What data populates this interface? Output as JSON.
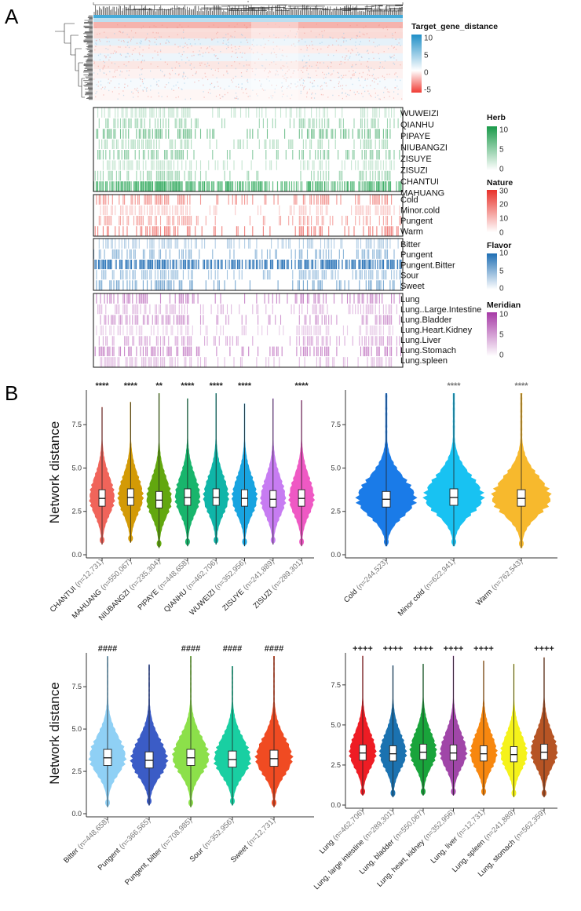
{
  "panel_labels": {
    "a": "A",
    "b": "B"
  },
  "heatmap": {
    "top_legend": {
      "title": "Target_gene_distance",
      "ticks": [
        "10",
        "5",
        "0",
        "-5"
      ],
      "colors": {
        "high": "#1f8fc7",
        "mid": "#ffffff",
        "low": "#f03c34"
      }
    },
    "blocks": [
      {
        "key": "herb",
        "legend_title": "Herb",
        "ticks": [
          "10",
          "5",
          "0"
        ],
        "color": "#1a9a4a",
        "rows": [
          "WUWEIZI",
          "QIANHU",
          "PIPAYE",
          "NIUBANGZI",
          "ZISUYE",
          "ZISUZI",
          "CHANTUI",
          "MAHUANG"
        ]
      },
      {
        "key": "nature",
        "legend_title": "Nature",
        "ticks": [
          "30",
          "20",
          "10",
          "0"
        ],
        "color": "#e8312a",
        "rows": [
          "Cold",
          "Minor.cold",
          "Pungent",
          "Warm"
        ]
      },
      {
        "key": "flavor",
        "legend_title": "Flavor",
        "ticks": [
          "10",
          "5",
          "0"
        ],
        "color": "#1f6fb4",
        "rows": [
          "Bitter",
          "Pungent",
          "Pungent.Bitter",
          "Sour",
          "Sweet"
        ]
      },
      {
        "key": "meridian",
        "legend_title": "Meridian",
        "ticks": [
          "10",
          "5",
          "0"
        ],
        "color": "#a63aa6",
        "rows": [
          "Lung",
          "Lung..Large.Intestine",
          "Lung.Bladder",
          "Lung.Heart.Kidney",
          "Lung.Liver",
          "Lung.Stomach",
          "Lung.spleen"
        ]
      }
    ]
  },
  "chart_data": [
    {
      "type": "violin",
      "title": "",
      "ylabel": "Network distance",
      "ylim": [
        0,
        9.5
      ],
      "yticks": [
        "0.0",
        "2.5",
        "5.0",
        "7.5"
      ],
      "categories": [
        "CHANTUI",
        "MAHUANG",
        "NIUBANGZI",
        "PIPAYE",
        "QIANHU",
        "WUWEIZI",
        "ZISUYE",
        "ZISUZI"
      ],
      "n": [
        "(n=12,731)",
        "(n=550,067)",
        "(n=235,304)",
        "(n=448,658)",
        "(n=462,706)",
        "(n=352,956)",
        "(n=241,889)",
        "(n=289,301)"
      ],
      "colors": [
        "#f0645a",
        "#d39a06",
        "#62a70f",
        "#18b56c",
        "#0fb5a8",
        "#18a4e0",
        "#c77cf2",
        "#ef59c4"
      ],
      "median": [
        3.25,
        3.3,
        3.15,
        3.3,
        3.3,
        3.25,
        3.2,
        3.25
      ],
      "q1": [
        2.8,
        2.85,
        2.7,
        2.85,
        2.85,
        2.8,
        2.75,
        2.8
      ],
      "q3": [
        3.75,
        3.8,
        3.65,
        3.8,
        3.8,
        3.75,
        3.7,
        3.75
      ],
      "max": [
        8.5,
        8.8,
        9.3,
        9.0,
        9.3,
        8.7,
        9.0,
        8.9
      ],
      "min": [
        0.6,
        0.7,
        0.4,
        0.5,
        0.6,
        0.5,
        0.6,
        0.5
      ],
      "significance": [
        "****",
        "****",
        "**",
        "****",
        "****",
        "****",
        "",
        "****"
      ]
    },
    {
      "type": "violin",
      "ylabel": "",
      "ylim": [
        0,
        9.5
      ],
      "yticks": [
        "0.0",
        "2.5",
        "5.0",
        "7.5"
      ],
      "categories": [
        "Cold",
        "Minor cold",
        "Warm"
      ],
      "n": [
        "(n=244,523)",
        "(n=622,941)",
        "(n=762,543)"
      ],
      "colors": [
        "#1a7be8",
        "#18c2f2",
        "#f7b92d"
      ],
      "median": [
        3.2,
        3.3,
        3.25
      ],
      "q1": [
        2.75,
        2.85,
        2.8
      ],
      "q3": [
        3.65,
        3.8,
        3.75
      ],
      "max": [
        9.3,
        9.3,
        9.3
      ],
      "min": [
        0.5,
        0.5,
        0.4
      ],
      "significance": [
        "",
        "****",
        "****"
      ]
    },
    {
      "type": "violin",
      "ylabel": "Network distance",
      "ylim": [
        0,
        9.5
      ],
      "yticks": [
        "0.0",
        "2.5",
        "5.0",
        "7.5"
      ],
      "categories": [
        "Bitter",
        "Pungent",
        "Pungent, bitter",
        "Sour",
        "Sweet"
      ],
      "n": [
        "(n=448,658)",
        "(n=366,565)",
        "(n=708,985)",
        "(n=352,956)",
        "(n=12,731)"
      ],
      "colors": [
        "#8fd0f5",
        "#3b5cc6",
        "#8ce04a",
        "#19cfa2",
        "#f04b22"
      ],
      "median": [
        3.3,
        3.15,
        3.3,
        3.2,
        3.25
      ],
      "q1": [
        2.85,
        2.7,
        2.85,
        2.75,
        2.8
      ],
      "q3": [
        3.8,
        3.65,
        3.8,
        3.7,
        3.75
      ],
      "max": [
        9.3,
        8.8,
        9.3,
        8.7,
        9.3
      ],
      "min": [
        0.4,
        0.5,
        0.4,
        0.5,
        0.4
      ],
      "significance": [
        "####",
        "",
        "####",
        "####",
        "####"
      ]
    },
    {
      "type": "violin",
      "ylabel": "",
      "ylim": [
        0,
        9.5
      ],
      "yticks": [
        "0.0",
        "2.5",
        "5.0",
        "7.5"
      ],
      "categories": [
        "Lung",
        "Lung, large intestine",
        "Lung, bladder",
        "Lung, heart, kidney",
        "Lung, liver",
        "Lung, spleen",
        "Lung, stomach"
      ],
      "n": [
        "(n=462,706)",
        "(n=289,301)",
        "(n=550,067)",
        "(n=352,956)",
        "(n=12,731)",
        "(n=241,889)",
        "(n=562,359)"
      ],
      "colors": [
        "#ee1c24",
        "#1b72b0",
        "#19a43b",
        "#a046a8",
        "#f7870f",
        "#f5f21a",
        "#b65424"
      ],
      "median": [
        3.25,
        3.2,
        3.3,
        3.25,
        3.2,
        3.15,
        3.3
      ],
      "q1": [
        2.8,
        2.75,
        2.85,
        2.8,
        2.75,
        2.7,
        2.85
      ],
      "q3": [
        3.75,
        3.7,
        3.8,
        3.75,
        3.7,
        3.65,
        3.8
      ],
      "max": [
        9.3,
        8.7,
        8.8,
        9.3,
        9.0,
        8.8,
        9.2
      ],
      "min": [
        0.6,
        0.5,
        0.6,
        0.6,
        0.6,
        0.5,
        0.5
      ],
      "significance": [
        "++++",
        "++++",
        "++++",
        "++++",
        "++++",
        "",
        "++++"
      ]
    }
  ]
}
